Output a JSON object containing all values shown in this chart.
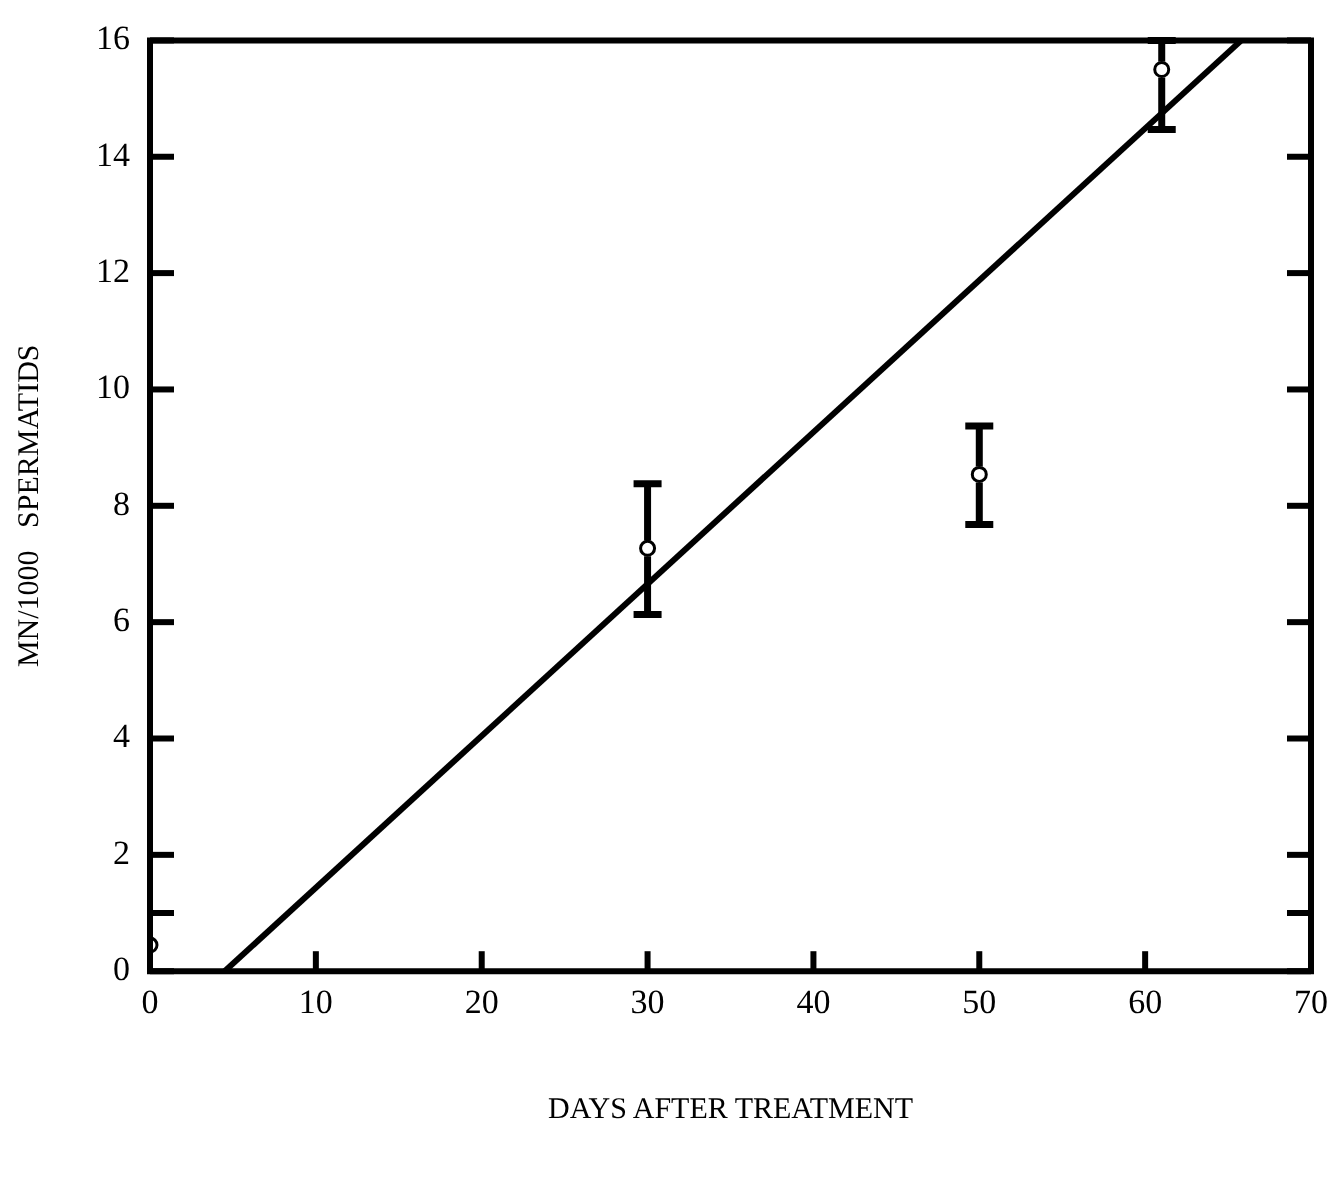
{
  "chart_data": {
    "type": "scatter",
    "xlabel": "DAYS AFTER TREATMENT",
    "ylabel": "MN/1000   SPERMATIDS",
    "xlim": [
      0,
      70
    ],
    "xticks": [
      0,
      10,
      20,
      30,
      40,
      50,
      60,
      70
    ],
    "ylim": [
      0,
      16
    ],
    "yticks": [
      0,
      {
        "value": 1,
        "label": null
      },
      2,
      4,
      6,
      8,
      10,
      12,
      14,
      16
    ],
    "grid": false,
    "legend": false,
    "marker": "circle",
    "series": [
      {
        "type": "scatter",
        "color": "#000000",
        "x": [
          0,
          30,
          50,
          61
        ],
        "values": [
          0.45,
          7.27,
          8.54,
          15.5
        ],
        "errors": [
          null,
          [
            6.13,
            8.38
          ],
          [
            7.68,
            9.37
          ],
          [
            14.47,
            16
          ]
        ]
      },
      {
        "type": "line",
        "color": "#000000",
        "line_style": "solid",
        "marker": "none",
        "x": [
          4.5,
          65.8
        ],
        "values": [
          0,
          16
        ]
      }
    ]
  }
}
